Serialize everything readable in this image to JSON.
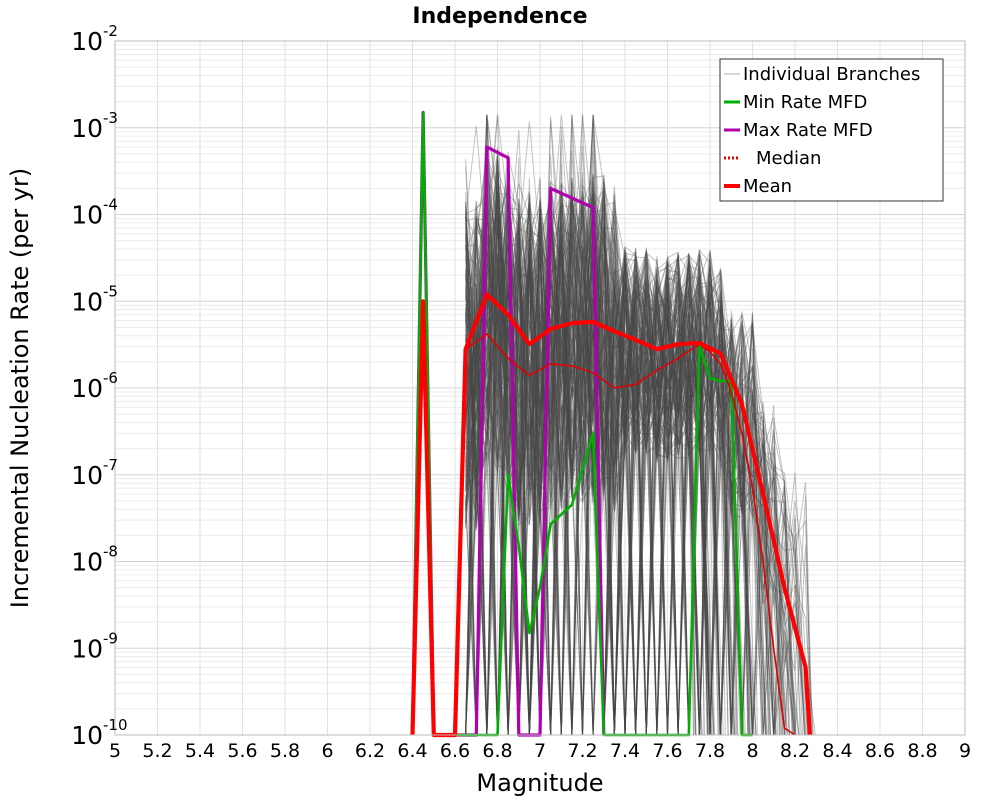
{
  "chart_data": {
    "type": "line",
    "title": "Independence",
    "xlabel": "Magnitude",
    "ylabel": "Incremental Nucleation Rate (per yr)",
    "xlim": [
      5,
      9
    ],
    "ylim": [
      1e-10,
      0.01
    ],
    "yscale": "log",
    "grid": true,
    "legend_position": "top-right",
    "x_ticks": [
      "5",
      "5.2",
      "5.4",
      "5.6",
      "5.8",
      "6",
      "6.2",
      "6.4",
      "6.6",
      "6.8",
      "7",
      "7.2",
      "7.4",
      "7.6",
      "7.8",
      "8",
      "8.2",
      "8.4",
      "8.6",
      "8.8",
      "9"
    ],
    "y_tick_base": "10",
    "y_tick_exponents": [
      "-2",
      "-3",
      "-4",
      "-5",
      "-6",
      "-7",
      "-8",
      "-9",
      "-10"
    ],
    "legend": [
      {
        "label": "Individual Branches",
        "color": "#b0b0b0",
        "style": "solid-thin"
      },
      {
        "label": "Min Rate MFD",
        "color": "#00b000",
        "style": "solid"
      },
      {
        "label": "Max Rate MFD",
        "color": "#b000b0",
        "style": "solid"
      },
      {
        "label": "Median",
        "color": "#e00000",
        "style": "dotted"
      },
      {
        "label": "Mean",
        "color": "#ff0000",
        "style": "solid-thick"
      }
    ],
    "series": [
      {
        "name": "Max Rate MFD",
        "color": "#b000b0",
        "x": [
          6.4,
          6.45,
          6.5,
          6.7,
          6.75,
          6.85,
          6.9,
          7.0,
          7.05,
          7.25,
          7.3
        ],
        "y": [
          1e-10,
          0.0015,
          1e-10,
          1e-10,
          0.0006,
          0.00045,
          1e-10,
          1e-10,
          0.0002,
          0.00012,
          1e-10
        ]
      },
      {
        "name": "Min Rate MFD",
        "color": "#00b000",
        "x": [
          6.4,
          6.45,
          6.5,
          6.8,
          6.85,
          6.9,
          6.95,
          7.0,
          7.05,
          7.15,
          7.25,
          7.3,
          7.7,
          7.75,
          7.8,
          7.85,
          7.9,
          7.95,
          8.0
        ],
        "y": [
          1e-10,
          0.0015,
          1e-10,
          1e-10,
          1e-07,
          1.5e-08,
          1.5e-09,
          5e-09,
          2.7e-08,
          4.5e-08,
          3e-07,
          1e-10,
          1e-10,
          3e-06,
          1.3e-06,
          1.2e-06,
          1.2e-06,
          1e-10,
          1e-10
        ]
      },
      {
        "name": "Median",
        "color": "#e00000",
        "x": [
          6.4,
          6.45,
          6.5,
          6.6,
          6.65,
          6.75,
          6.85,
          6.95,
          7.05,
          7.15,
          7.25,
          7.35,
          7.45,
          7.55,
          7.65,
          7.75,
          7.8,
          7.85,
          7.9,
          7.95,
          8.0,
          8.05,
          8.1,
          8.15,
          8.2
        ],
        "y": [
          1e-10,
          1e-05,
          1e-10,
          1e-10,
          2.8e-06,
          4.2e-06,
          2.2e-06,
          1.4e-06,
          1.9e-06,
          1.8e-06,
          1.5e-06,
          1e-06,
          1.1e-06,
          1.6e-06,
          2.2e-06,
          3.2e-06,
          2.6e-06,
          1.9e-06,
          9e-07,
          3e-07,
          7e-08,
          1e-08,
          1e-09,
          1.2e-10,
          1e-10
        ]
      },
      {
        "name": "Mean",
        "color": "#ff0000",
        "x": [
          6.4,
          6.45,
          6.5,
          6.6,
          6.65,
          6.75,
          6.85,
          6.95,
          7.05,
          7.15,
          7.25,
          7.35,
          7.45,
          7.55,
          7.65,
          7.75,
          7.85,
          7.95,
          8.05,
          8.15,
          8.25,
          8.27
        ],
        "y": [
          1e-10,
          1e-05,
          1e-10,
          1e-10,
          2.8e-06,
          1.2e-05,
          7e-06,
          3.2e-06,
          4.8e-06,
          5.6e-06,
          5.8e-06,
          4.5e-06,
          3.6e-06,
          2.8e-06,
          3.2e-06,
          3.3e-06,
          2.5e-06,
          6.5e-07,
          6e-08,
          5e-09,
          6e-10,
          1e-10
        ]
      }
    ]
  }
}
